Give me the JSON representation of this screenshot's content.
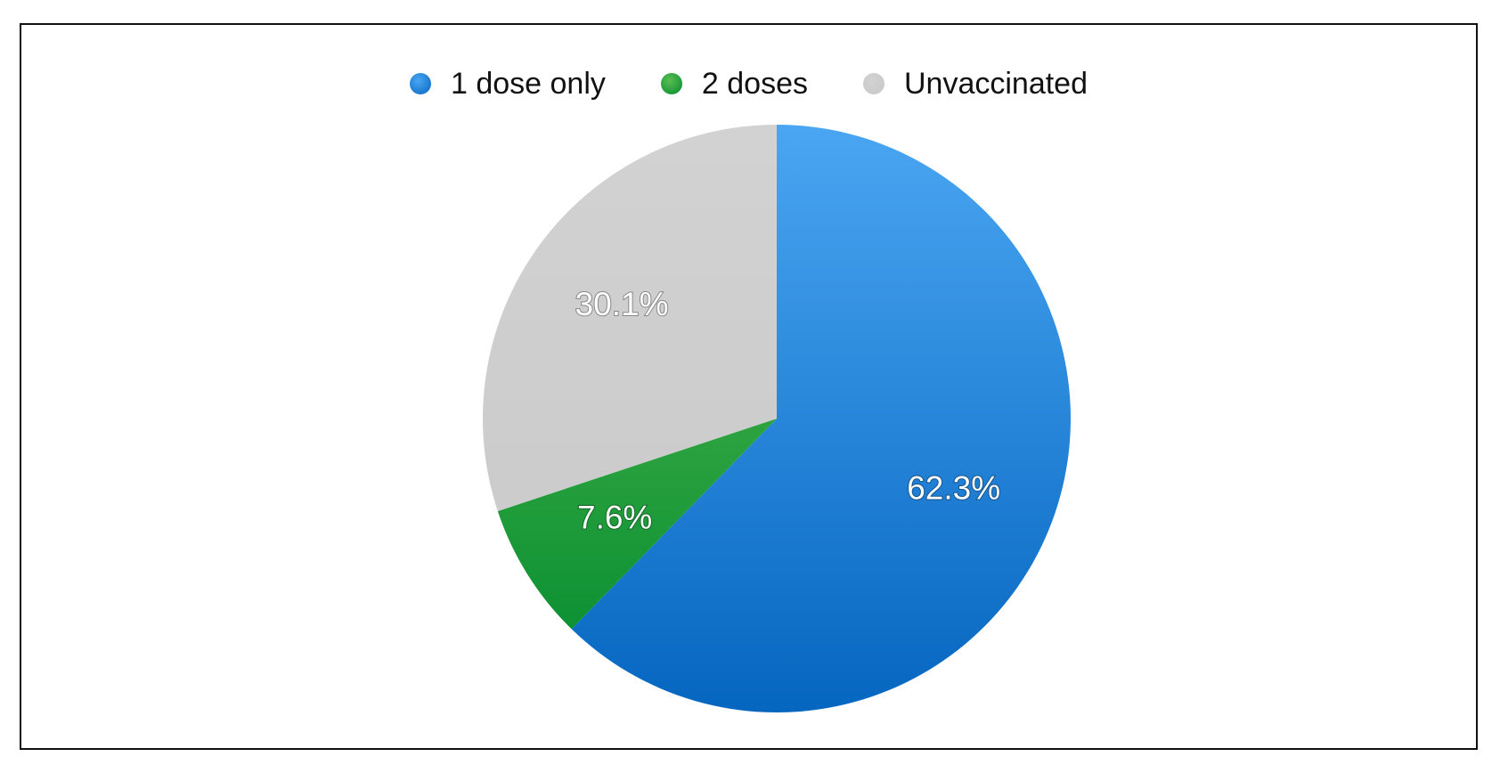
{
  "chart_data": {
    "type": "pie",
    "title": "",
    "legend_position": "top-center",
    "slices": [
      {
        "name": "1 dose only",
        "value": 62.3,
        "label": "62.3%",
        "color": "#1a7fdb",
        "color_light": "#4aa6f2",
        "color_dark": "#0566c0"
      },
      {
        "name": "2 doses",
        "value": 7.6,
        "label": "7.6%",
        "color": "#2aa043",
        "color_light": "#5cbd52",
        "color_dark": "#008a2e"
      },
      {
        "name": "Unvaccinated",
        "value": 30.1,
        "label": "30.1%",
        "color": "#cccccc",
        "color_light": "#d2d2d2",
        "color_dark": "#c8c8c8"
      }
    ]
  }
}
